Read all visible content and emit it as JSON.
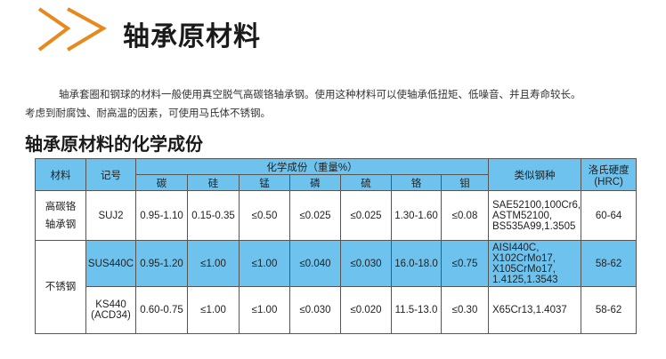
{
  "header": {
    "title": "轴承原材料",
    "accent": "#e8891e"
  },
  "intro": {
    "line1": "轴承套圈和钢球的材料一般使用真空脱气高碳铬轴承钢。使用这种材料可以使轴承低扭矩、低噪音、并且寿命较长。",
    "line2": "考虑到耐腐蚀、耐高温的因素，可使用马氏体不锈钢。"
  },
  "section_title": "轴承原材料的化学成份",
  "table": {
    "headers": {
      "material": "材料",
      "code": "记号",
      "composition": "化学成份（重量%）",
      "elements": [
        "碳",
        "硅",
        "锰",
        "磷",
        "硫",
        "铬",
        "钼"
      ],
      "similar": "类似钢种",
      "hardness": "洛氏硬度",
      "hardness_unit": "(HRC)"
    },
    "groups": [
      {
        "material": "高碳铬轴承钢",
        "rows": [
          {
            "code": "SUJ2",
            "values": [
              "0.95-1.10",
              "0.15-0.35",
              "≤0.50",
              "≤0.025",
              "≤0.025",
              "1.30-1.60",
              "≤0.08"
            ],
            "similar": "SAE52100,100Cr6, ASTM52100, BS535A99,1.3505",
            "hardness": "60-64",
            "highlight": false
          }
        ]
      },
      {
        "material": "不锈钢",
        "rows": [
          {
            "code": "SUS440C",
            "values": [
              "0.95-1.20",
              "≤1.00",
              "≤1.00",
              "≤0.040",
              "≤0.030",
              "16.0-18.0",
              "≤0.75"
            ],
            "similar": "AISI440C, X102CrMo17, X105CrMo17, 1.4125,1.3543",
            "hardness": "58-62",
            "highlight": true
          },
          {
            "code": "KS440 (ACD34)",
            "values": [
              "0.60-0.75",
              "≤1.00",
              "≤1.00",
              "≤0.030",
              "≤0.020",
              "11.5-13.0",
              "≤0.30"
            ],
            "similar": "X65Cr13,1.4037",
            "hardness": "58-62",
            "highlight": false
          }
        ]
      }
    ]
  }
}
